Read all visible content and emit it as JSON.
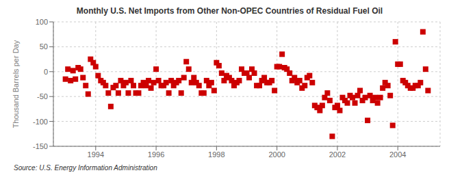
{
  "chart_data": {
    "type": "scatter",
    "title": "Monthly U.S. Net Imports from Other Non-OPEC Countries of Residual Fuel Oil",
    "ylabel": "Thousand Barrels per Day",
    "source": "Source: U.S. Energy Information Administration",
    "color": "#cc0000",
    "marker": "square",
    "grid": true,
    "xlim": [
      1992.6,
      2005.4
    ],
    "ylim": [
      -150,
      100
    ],
    "xticks": [
      1994,
      1996,
      1998,
      2000,
      2002,
      2004
    ],
    "yticks": [
      -150,
      -100,
      -50,
      0,
      50,
      100
    ],
    "x": [
      1993.0,
      1993.08,
      1993.17,
      1993.25,
      1993.33,
      1993.42,
      1993.5,
      1993.58,
      1993.67,
      1993.75,
      1993.83,
      1993.92,
      1994.0,
      1994.08,
      1994.17,
      1994.25,
      1994.33,
      1994.42,
      1994.5,
      1994.58,
      1994.67,
      1994.75,
      1994.83,
      1994.92,
      1995.0,
      1995.08,
      1995.17,
      1995.25,
      1995.33,
      1995.42,
      1995.5,
      1995.58,
      1995.67,
      1995.75,
      1995.83,
      1995.92,
      1996.0,
      1996.08,
      1996.17,
      1996.25,
      1996.33,
      1996.42,
      1996.5,
      1996.58,
      1996.67,
      1996.75,
      1996.83,
      1996.92,
      1997.0,
      1997.08,
      1997.17,
      1997.25,
      1997.33,
      1997.42,
      1997.5,
      1997.58,
      1997.67,
      1997.75,
      1997.83,
      1997.92,
      1998.0,
      1998.08,
      1998.17,
      1998.25,
      1998.33,
      1998.42,
      1998.5,
      1998.58,
      1998.67,
      1998.75,
      1998.83,
      1998.92,
      1999.0,
      1999.08,
      1999.17,
      1999.25,
      1999.33,
      1999.42,
      1999.5,
      1999.58,
      1999.67,
      1999.75,
      1999.83,
      1999.92,
      2000.0,
      2000.08,
      2000.17,
      2000.25,
      2000.33,
      2000.42,
      2000.5,
      2000.58,
      2000.67,
      2000.75,
      2000.83,
      2000.92,
      2001.0,
      2001.08,
      2001.17,
      2001.25,
      2001.33,
      2001.42,
      2001.5,
      2001.58,
      2001.67,
      2001.75,
      2001.83,
      2001.92,
      2002.0,
      2002.08,
      2002.17,
      2002.25,
      2002.33,
      2002.42,
      2002.5,
      2002.58,
      2002.67,
      2002.75,
      2002.83,
      2002.92,
      2003.0,
      2003.08,
      2003.17,
      2003.25,
      2003.33,
      2003.42,
      2003.5,
      2003.58,
      2003.67,
      2003.75,
      2003.83,
      2003.92,
      2004.0,
      2004.08,
      2004.17,
      2004.25,
      2004.33,
      2004.42,
      2004.5,
      2004.58,
      2004.67,
      2004.75,
      2004.83,
      2004.92,
      2005.0
    ],
    "values": [
      -15,
      5,
      -18,
      2,
      -15,
      8,
      5,
      -12,
      -28,
      -45,
      25,
      18,
      10,
      -8,
      -18,
      -22,
      -28,
      -43,
      -70,
      -32,
      -28,
      -43,
      -18,
      -28,
      -22,
      -43,
      -18,
      -28,
      -43,
      -43,
      -28,
      -22,
      -28,
      -18,
      -33,
      -22,
      5,
      -18,
      -28,
      -28,
      -22,
      -43,
      -18,
      -28,
      -22,
      -18,
      -43,
      -12,
      20,
      5,
      -22,
      -12,
      -22,
      -28,
      -43,
      -43,
      -18,
      -28,
      -22,
      -38,
      18,
      12,
      -3,
      -18,
      -8,
      -12,
      -18,
      -28,
      -22,
      -18,
      5,
      -3,
      -3,
      -12,
      5,
      -3,
      -28,
      -28,
      -18,
      -12,
      -22,
      -22,
      -18,
      -38,
      10,
      10,
      35,
      8,
      5,
      -3,
      -18,
      -12,
      -22,
      -18,
      -33,
      -28,
      -12,
      -8,
      -22,
      -68,
      -72,
      -78,
      -68,
      -52,
      -43,
      -58,
      -130,
      -72,
      -68,
      -78,
      -52,
      -58,
      -63,
      -48,
      -52,
      -63,
      -48,
      -38,
      -58,
      -52,
      -98,
      -48,
      -58,
      -52,
      -63,
      -52,
      -33,
      -22,
      -28,
      -48,
      -108,
      60,
      15,
      15,
      -18,
      -22,
      -28,
      -33,
      -33,
      -28,
      -28,
      -22,
      80,
      5,
      -38
    ]
  }
}
